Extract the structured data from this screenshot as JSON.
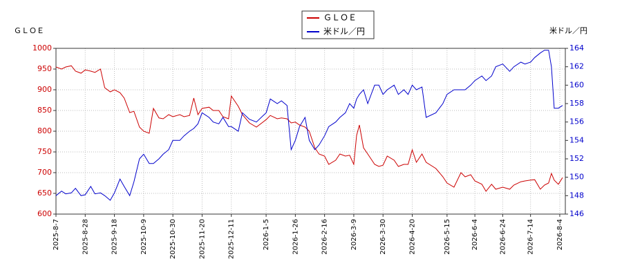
{
  "chart_data": {
    "type": "line",
    "y_label": "ＧＬＯＥ",
    "y2_label": "米ドル／円",
    "x": [
      "2025-8-7",
      "2025-8-11",
      "2025-8-14",
      "2025-8-18",
      "2025-8-21",
      "2025-8-25",
      "2025-8-28",
      "2025-9-1",
      "2025-9-4",
      "2025-9-8",
      "2025-9-11",
      "2025-9-15",
      "2025-9-18",
      "2025-9-22",
      "2025-9-25",
      "2025-9-29",
      "2025-10-2",
      "2025-10-6",
      "2025-10-9",
      "2025-10-13",
      "2025-10-16",
      "2025-10-20",
      "2025-10-23",
      "2025-10-27",
      "2025-10-30",
      "2025-11-4",
      "2025-11-7",
      "2025-11-11",
      "2025-11-14",
      "2025-11-17",
      "2025-11-20",
      "2025-11-25",
      "2025-11-28",
      "2025-12-2",
      "2025-12-5",
      "2025-12-9",
      "2025-12-11",
      "2025-12-16",
      "2025-12-19",
      "2025-12-24",
      "2025-12-29",
      "2026-1-5",
      "2026-1-8",
      "2026-1-13",
      "2026-1-16",
      "2026-1-20",
      "2026-1-23",
      "2026-1-26",
      "2026-1-29",
      "2026-2-2",
      "2026-2-5",
      "2026-2-9",
      "2026-2-12",
      "2026-2-16",
      "2026-2-19",
      "2026-2-24",
      "2026-2-27",
      "2026-3-3",
      "2026-3-6",
      "2026-3-9",
      "2026-3-11",
      "2026-3-13",
      "2026-3-16",
      "2026-3-19",
      "2026-3-24",
      "2026-3-27",
      "2026-3-30",
      "2026-4-2",
      "2026-4-7",
      "2026-4-10",
      "2026-4-14",
      "2026-4-17",
      "2026-4-20",
      "2026-4-23",
      "2026-4-27",
      "2026-4-30",
      "2026-5-7",
      "2026-5-12",
      "2026-5-15",
      "2026-5-20",
      "2026-5-25",
      "2026-5-28",
      "2026-6-1",
      "2026-6-4",
      "2026-6-9",
      "2026-6-12",
      "2026-6-16",
      "2026-6-19",
      "2026-6-24",
      "2026-6-29",
      "2026-7-2",
      "2026-7-7",
      "2026-7-10",
      "2026-7-14",
      "2026-7-17",
      "2026-7-21",
      "2026-7-24",
      "2026-7-27",
      "2026-7-29",
      "2026-7-31",
      "2026-8-3",
      "2026-8-6"
    ],
    "series": [
      {
        "name": "ＧＬＯＥ",
        "color": "#cc0000",
        "values": [
          955,
          950,
          955,
          958,
          945,
          940,
          948,
          945,
          942,
          950,
          905,
          895,
          900,
          893,
          880,
          845,
          848,
          810,
          800,
          795,
          855,
          832,
          830,
          840,
          835,
          840,
          835,
          838,
          880,
          840,
          855,
          858,
          850,
          850,
          835,
          830,
          885,
          860,
          840,
          820,
          810,
          828,
          838,
          830,
          832,
          830,
          820,
          822,
          815,
          810,
          800,
          760,
          745,
          740,
          720,
          730,
          745,
          740,
          742,
          720,
          790,
          815,
          760,
          745,
          720,
          715,
          718,
          740,
          730,
          715,
          720,
          720,
          755,
          725,
          745,
          725,
          710,
          690,
          675,
          665,
          700,
          690,
          695,
          680,
          672,
          655,
          672,
          660,
          665,
          660,
          670,
          678,
          680,
          682,
          683,
          660,
          670,
          675,
          698,
          682,
          672,
          688
        ]
      },
      {
        "name": "米ドル／円",
        "color": "#0000cc",
        "axis": "y2",
        "values": [
          148.0,
          148.5,
          148.2,
          148.3,
          148.8,
          148.0,
          148.1,
          149.0,
          148.2,
          148.3,
          148.0,
          147.5,
          148.3,
          149.8,
          149.0,
          148.0,
          149.5,
          152.0,
          152.5,
          151.5,
          151.5,
          152.0,
          152.5,
          153.0,
          154.0,
          154.0,
          154.5,
          155.0,
          155.3,
          155.8,
          157.0,
          156.5,
          156.0,
          155.8,
          156.5,
          155.5,
          155.5,
          155.0,
          157.0,
          156.3,
          156.0,
          157.0,
          158.5,
          158.0,
          158.3,
          157.8,
          153.0,
          154.0,
          155.5,
          156.5,
          154.0,
          153.0,
          153.5,
          154.5,
          155.5,
          156.0,
          156.5,
          157.0,
          158.0,
          157.5,
          158.5,
          159.0,
          159.5,
          158.0,
          160.0,
          160.0,
          159.0,
          159.5,
          160.0,
          159.0,
          159.5,
          159.0,
          160.0,
          159.5,
          159.8,
          156.5,
          157.0,
          158.0,
          159.0,
          159.5,
          159.5,
          159.5,
          160.0,
          160.5,
          161.0,
          160.5,
          161.0,
          162.0,
          162.3,
          161.5,
          162.0,
          162.5,
          162.3,
          162.5,
          163.0,
          163.5,
          163.8,
          163.8,
          162.0,
          157.5,
          157.5,
          157.8
        ]
      }
    ],
    "xlim": [
      "2025-8-7",
      "2026-8-8"
    ],
    "xticks": [
      "2025-8-7",
      "2025-8-28",
      "2025-9-18",
      "2025-10-9",
      "2025-10-30",
      "2025-11-20",
      "2025-12-11",
      "2026-1-5",
      "2026-1-26",
      "2026-2-16",
      "2026-3-9",
      "2026-3-30",
      "2026-4-20",
      "2026-5-15",
      "2026-6-4",
      "2026-6-24",
      "2026-7-14",
      "2026-8-4"
    ],
    "ylim": [
      600,
      1000
    ],
    "yticks": [
      600,
      650,
      700,
      750,
      800,
      850,
      900,
      950,
      1000
    ],
    "y2lim": [
      146,
      164
    ],
    "y2ticks": [
      146,
      148,
      150,
      152,
      154,
      156,
      158,
      160,
      162,
      164
    ],
    "grid": true
  }
}
